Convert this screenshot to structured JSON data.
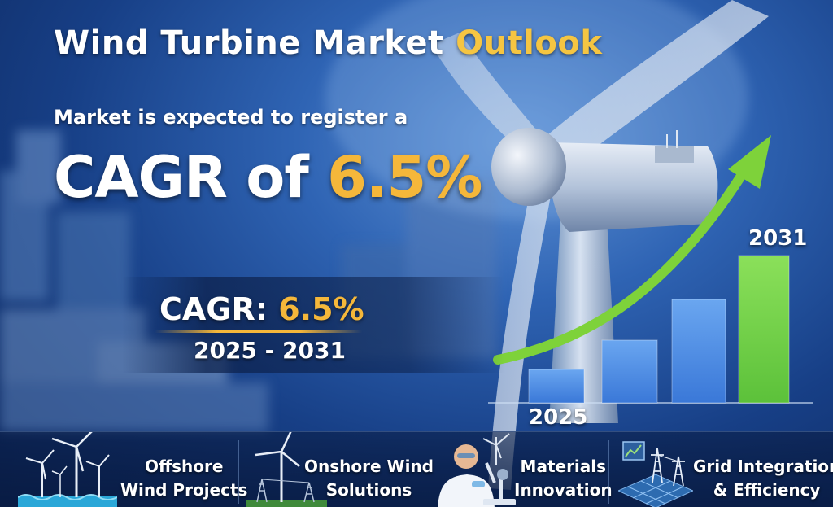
{
  "headline": {
    "title_main": "Wind Turbine Market",
    "title_accent": "Outlook"
  },
  "intro": {
    "subtitle": "Market is expected to register a"
  },
  "cagr_big": {
    "prefix": "CAGR of",
    "value": "6.5%"
  },
  "cagr_small": {
    "prefix": "CAGR:",
    "value": "6.5%"
  },
  "period": "2025 - 2031",
  "chart": {
    "start_label": "2025",
    "end_label": "2031",
    "colors": {
      "bar_blue": "#3a78d8",
      "bar_green": "#5cc13a",
      "arrow": "#7ed23a"
    }
  },
  "features": [
    {
      "line1": "Offshore",
      "line2": "Wind Projects",
      "icon": "offshore-turbines-icon"
    },
    {
      "line1": "Onshore Wind",
      "line2": "Solutions",
      "icon": "onshore-turbine-icon"
    },
    {
      "line1": "Materials",
      "line2": "Innovation",
      "icon": "scientist-microscope-icon"
    },
    {
      "line1": "Grid Integration",
      "line2": "& Efficiency",
      "icon": "power-grid-icon"
    }
  ]
}
